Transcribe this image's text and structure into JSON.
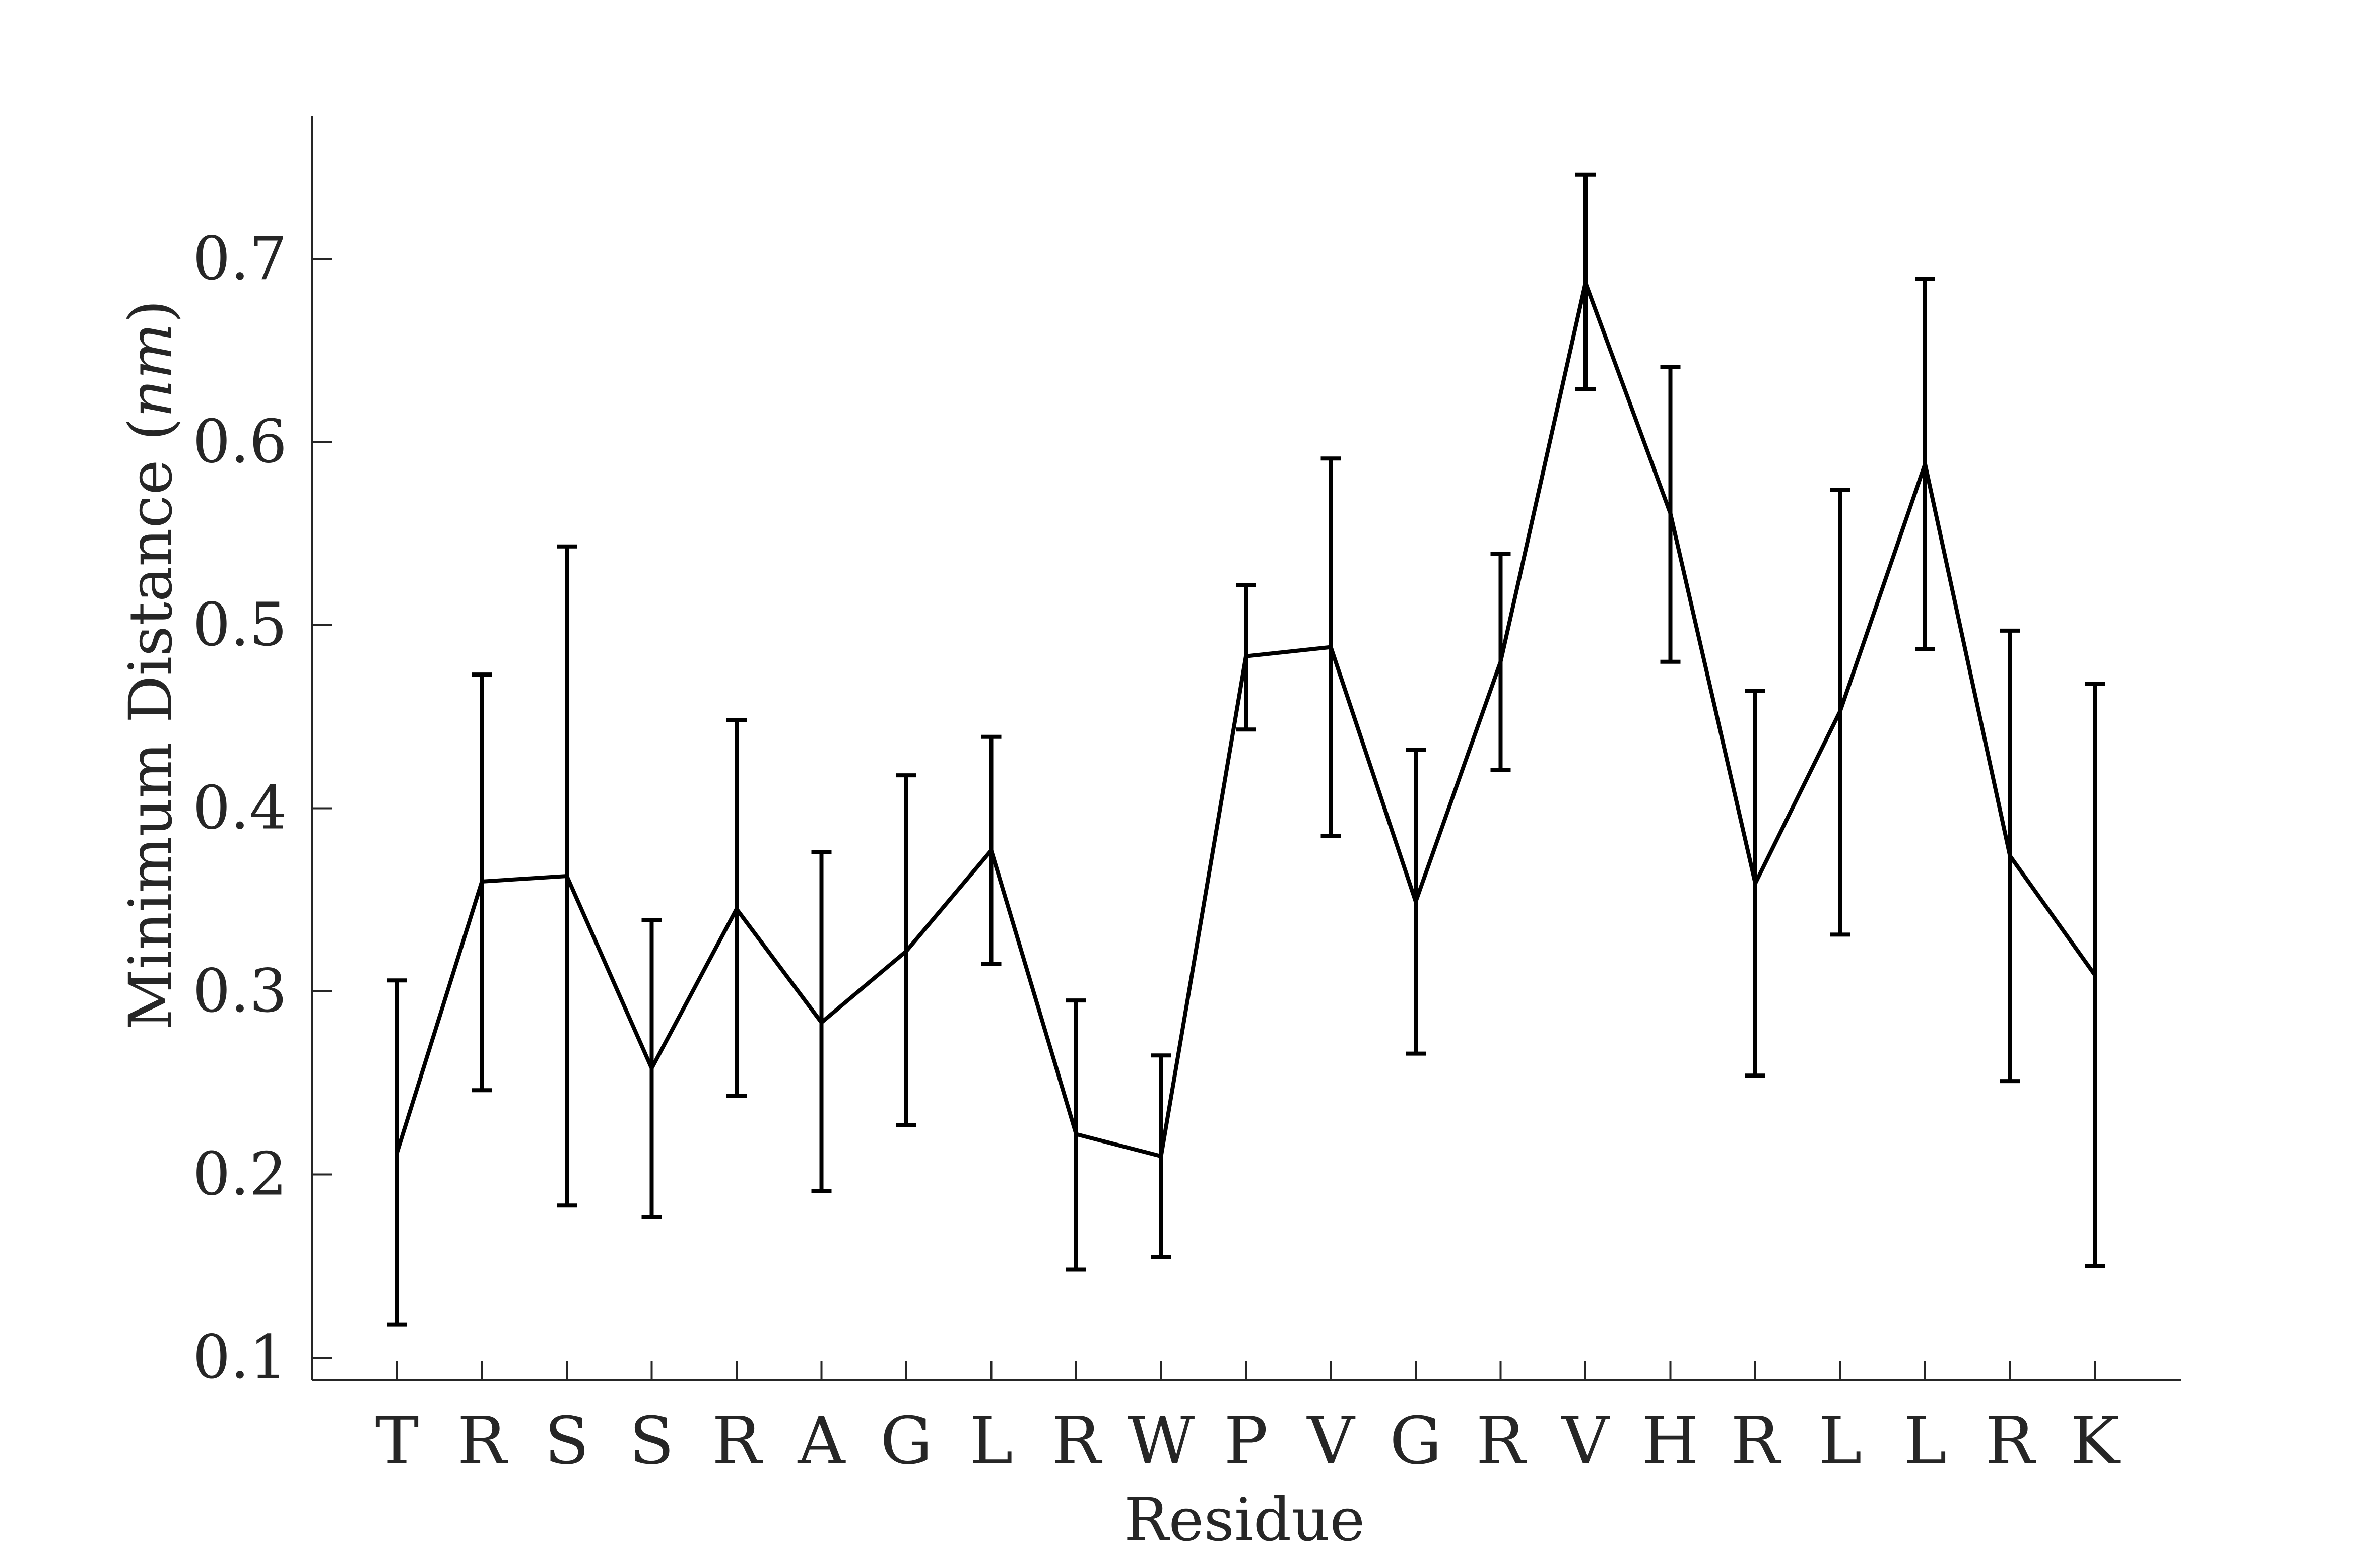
{
  "chart_data": {
    "type": "line",
    "title": "",
    "xlabel": "Residue",
    "ylabel_main": "Minimum Distance (",
    "ylabel_unit": "nm",
    "ylabel_close": ")",
    "ylim": [
      0.09,
      0.78
    ],
    "yticks": [
      0.1,
      0.2,
      0.3,
      0.4,
      0.5,
      0.6,
      0.7
    ],
    "ytick_labels": [
      "0.1",
      "0.2",
      "0.3",
      "0.4",
      "0.5",
      "0.6",
      "0.7"
    ],
    "grid": false,
    "categories": [
      "T",
      "R",
      "S",
      "S",
      "R",
      "A",
      "G",
      "L",
      "R",
      "W",
      "P",
      "V",
      "G",
      "R",
      "V",
      "H",
      "R",
      "L",
      "L",
      "R",
      "K"
    ],
    "series": [
      {
        "values": [
          0.212,
          0.36,
          0.363,
          0.258,
          0.345,
          0.283,
          0.322,
          0.377,
          0.222,
          0.21,
          0.483,
          0.488,
          0.349,
          0.48,
          0.687,
          0.561,
          0.359,
          0.453,
          0.588,
          0.374,
          0.309
        ],
        "err_low": [
          0.118,
          0.246,
          0.183,
          0.177,
          0.243,
          0.191,
          0.227,
          0.315,
          0.148,
          0.155,
          0.443,
          0.385,
          0.266,
          0.421,
          0.629,
          0.48,
          0.254,
          0.331,
          0.487,
          0.251,
          0.15
        ],
        "err_high": [
          0.306,
          0.473,
          0.543,
          0.339,
          0.448,
          0.376,
          0.418,
          0.439,
          0.295,
          0.265,
          0.522,
          0.591,
          0.432,
          0.539,
          0.746,
          0.641,
          0.464,
          0.574,
          0.689,
          0.497,
          0.468
        ]
      }
    ]
  }
}
